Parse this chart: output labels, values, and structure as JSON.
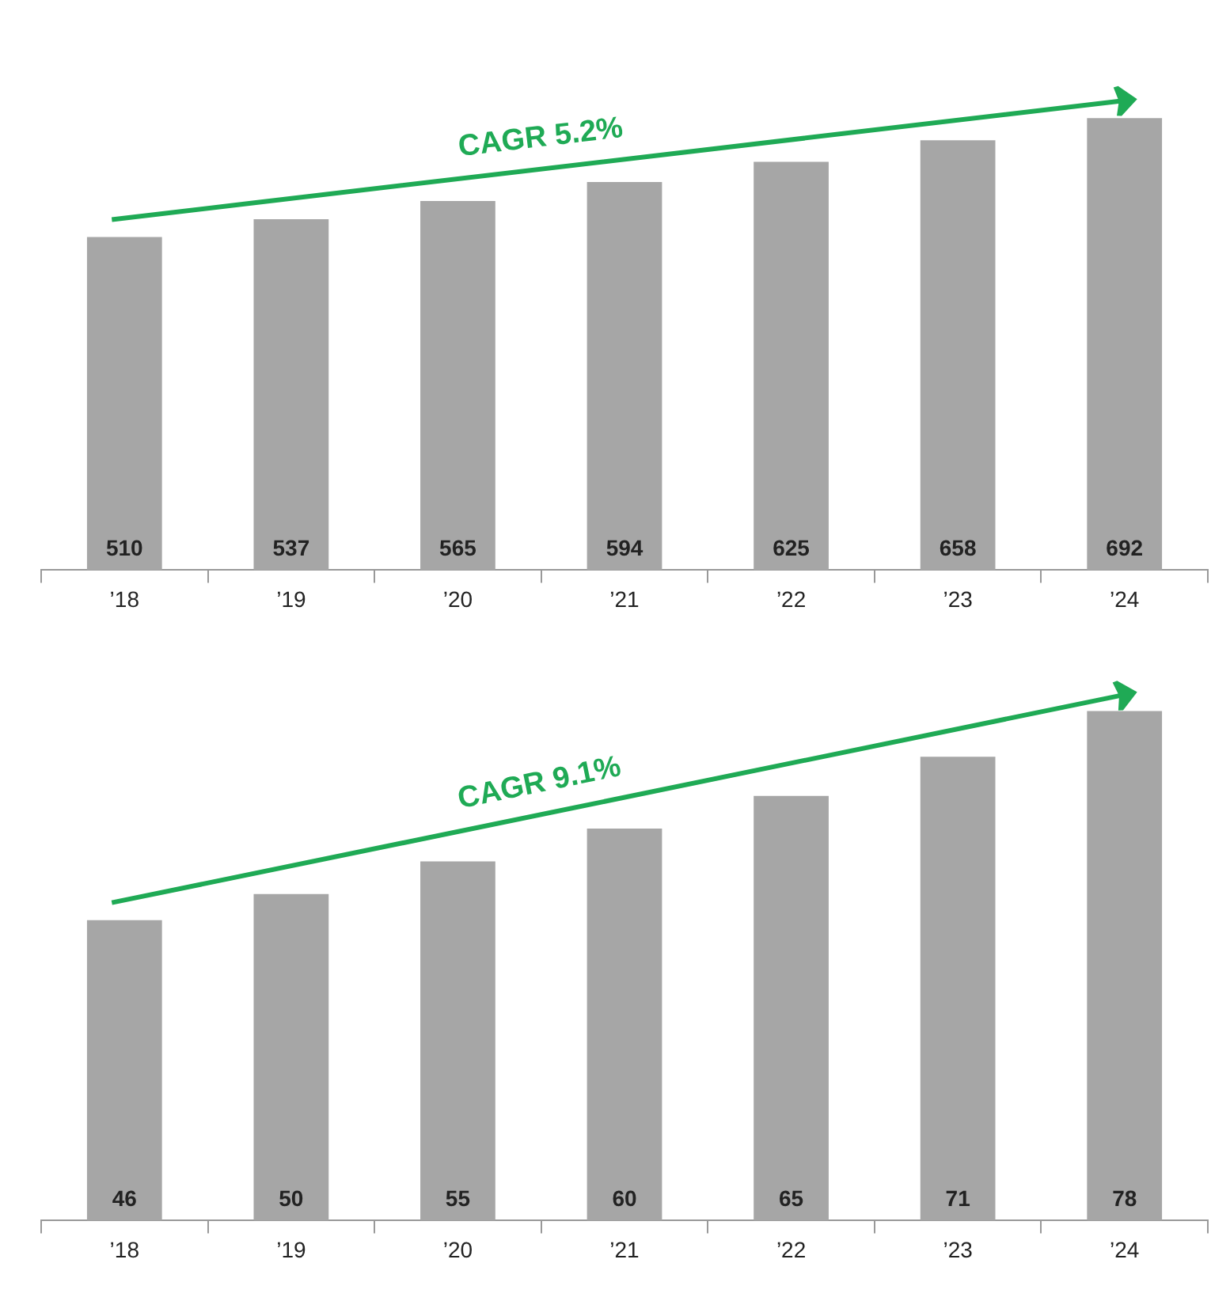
{
  "chart_data": [
    {
      "type": "bar",
      "categories": [
        "’18",
        "’19",
        "’20",
        "’21",
        "’22",
        "’23",
        "’24"
      ],
      "values": [
        510,
        537,
        565,
        594,
        625,
        658,
        692
      ],
      "color": "#a6a6a6",
      "data_labels": true,
      "grid": false,
      "tick_labels": "x",
      "annotations": [
        "CAGR 5.2%"
      ]
    },
    {
      "type": "bar",
      "categories": [
        "’18",
        "’19",
        "’20",
        "’21",
        "’22",
        "’23",
        "’24"
      ],
      "values": [
        46,
        50,
        55,
        60,
        65,
        71,
        78
      ],
      "color": "#a6a6a6",
      "data_labels": true,
      "grid": false,
      "tick_labels": "x",
      "annotations": [
        "CAGR 9.1%"
      ]
    }
  ]
}
